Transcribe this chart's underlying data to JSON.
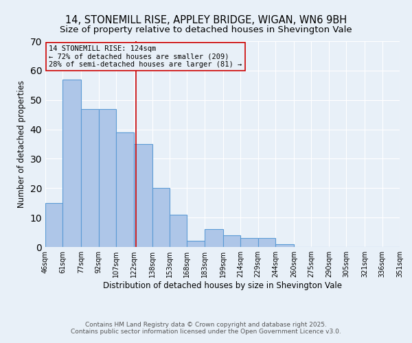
{
  "title1": "14, STONEMILL RISE, APPLEY BRIDGE, WIGAN, WN6 9BH",
  "title2": "Size of property relative to detached houses in Shevington Vale",
  "xlabel": "Distribution of detached houses by size in Shevington Vale",
  "ylabel": "Number of detached properties",
  "bar_edges": [
    46,
    61,
    77,
    92,
    107,
    122,
    138,
    153,
    168,
    183,
    199,
    214,
    229,
    244,
    260,
    275,
    290,
    305,
    321,
    336,
    351
  ],
  "bar_heights": [
    15,
    57,
    47,
    47,
    39,
    35,
    20,
    11,
    2,
    6,
    4,
    3,
    3,
    1,
    0,
    0,
    0,
    0,
    0,
    0
  ],
  "bar_color": "#aec6e8",
  "bar_edge_color": "#5b9bd5",
  "vline_x": 124,
  "vline_color": "#cc0000",
  "annotation_line1": "14 STONEMILL RISE: 124sqm",
  "annotation_line2": "← 72% of detached houses are smaller (209)",
  "annotation_line3": "28% of semi-detached houses are larger (81) →",
  "annotation_box_color": "#cc0000",
  "annotation_fontsize": 7.5,
  "bg_color": "#e8f0f8",
  "ylim": [
    0,
    70
  ],
  "tick_labels": [
    "46sqm",
    "61sqm",
    "77sqm",
    "92sqm",
    "107sqm",
    "122sqm",
    "138sqm",
    "153sqm",
    "168sqm",
    "183sqm",
    "199sqm",
    "214sqm",
    "229sqm",
    "244sqm",
    "260sqm",
    "275sqm",
    "290sqm",
    "305sqm",
    "321sqm",
    "336sqm",
    "351sqm"
  ],
  "footer1": "Contains HM Land Registry data © Crown copyright and database right 2025.",
  "footer2": "Contains public sector information licensed under the Open Government Licence v3.0.",
  "title_fontsize": 10.5,
  "subtitle_fontsize": 9.5,
  "xlabel_fontsize": 8.5,
  "ylabel_fontsize": 8.5,
  "tick_fontsize": 7,
  "footer_fontsize": 6.5
}
